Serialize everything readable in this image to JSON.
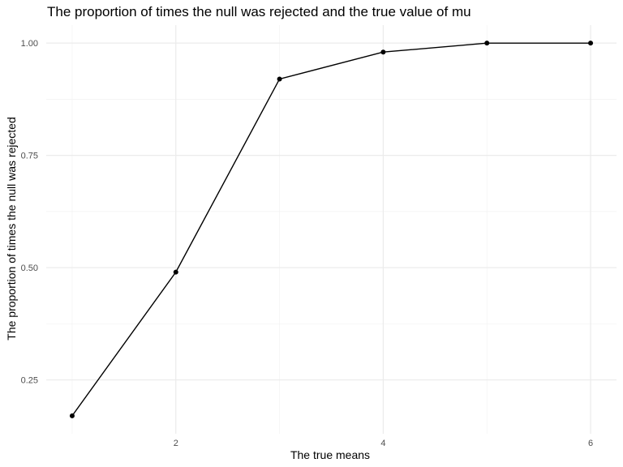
{
  "chart_data": {
    "type": "line",
    "title": "The proportion of times the null was rejected and the true value of mu",
    "xlabel": "The true means",
    "ylabel": "The proportion of times the null was rejected",
    "x": [
      1,
      2,
      3,
      4,
      5,
      6
    ],
    "y": [
      0.17,
      0.49,
      0.92,
      0.98,
      1.0,
      1.0
    ],
    "xlim": [
      0.75,
      6.25
    ],
    "ylim": [
      0.13,
      1.04
    ],
    "x_ticks": [
      2,
      4,
      6
    ],
    "x_tick_labels": [
      "2",
      "4",
      "6"
    ],
    "x_minor_ticks": [
      1,
      3,
      5
    ],
    "y_ticks": [
      0.25,
      0.5,
      0.75,
      1.0
    ],
    "y_tick_labels": [
      "0.25",
      "0.50",
      "0.75",
      "1.00"
    ],
    "y_minor_ticks": [
      0.375,
      0.625,
      0.875
    ],
    "grid": true,
    "legend": "none",
    "colors": {
      "line": "#000000",
      "point": "#000000",
      "grid_major": "#ebebeb",
      "grid_minor": "#f2f2f2"
    }
  }
}
